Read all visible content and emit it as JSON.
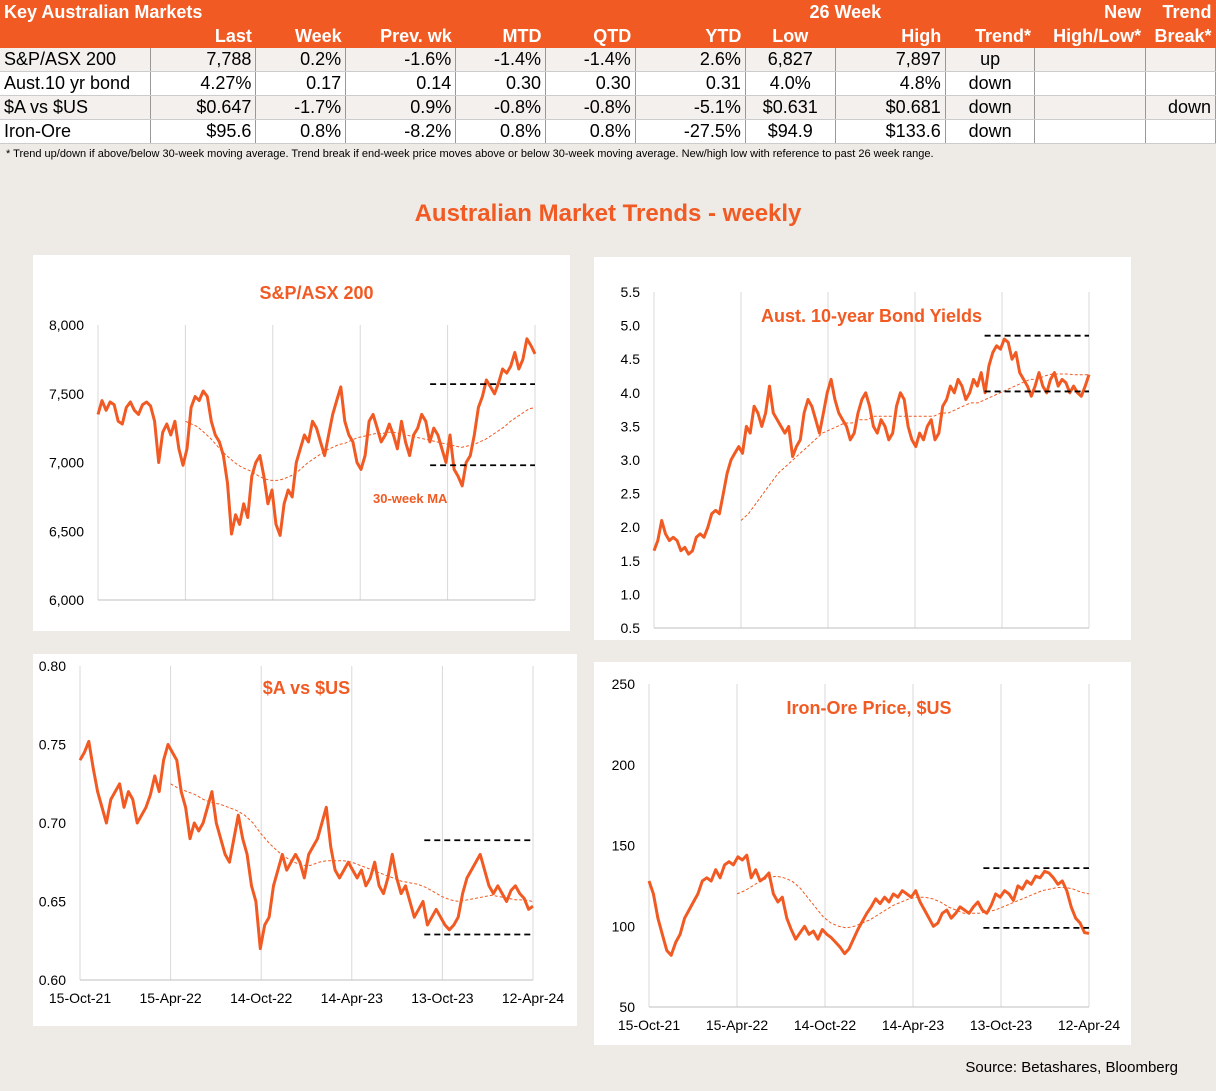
{
  "table": {
    "title": "Key Australian Markets",
    "group_header": "26 Week",
    "headers": [
      "Last",
      "Week",
      "Prev. wk",
      "MTD",
      "QTD",
      "YTD",
      "Low",
      "High",
      "Trend*",
      "New High/Low*",
      "Trend Break*"
    ],
    "header_top": {
      "new": "New",
      "trend": "Trend"
    },
    "header_bottom": {
      "new": "High/Low*",
      "trend": "Break*"
    },
    "rows": [
      {
        "name": "S&P/ASX 200",
        "last": "7,788",
        "week": "0.2%",
        "prev": "-1.6%",
        "mtd": "-1.4%",
        "qtd": "-1.4%",
        "ytd": "2.6%",
        "low": "6,827",
        "high": "7,897",
        "trend": "up",
        "newhl": "",
        "brk": ""
      },
      {
        "name": "Aust.10 yr bond",
        "last": "4.27%",
        "week": "0.17",
        "prev": "0.14",
        "mtd": "0.30",
        "qtd": "0.30",
        "ytd": "0.31",
        "low": "4.0%",
        "high": "4.8%",
        "trend": "down",
        "newhl": "",
        "brk": ""
      },
      {
        "name": "$A vs $US",
        "last": "$0.647",
        "week": "-1.7%",
        "prev": "0.9%",
        "mtd": "-0.8%",
        "qtd": "-0.8%",
        "ytd": "-5.1%",
        "low": "$0.631",
        "high": "$0.681",
        "trend": "down",
        "newhl": "",
        "brk": "down"
      },
      {
        "name": "Iron-Ore",
        "last": "$95.6",
        "week": "0.8%",
        "prev": "-8.2%",
        "mtd": "0.8%",
        "qtd": "0.8%",
        "ytd": "-27.5%",
        "low": "$94.9",
        "high": "$133.6",
        "trend": "down",
        "newhl": "",
        "brk": ""
      }
    ]
  },
  "footnote": "*  Trend up/down if above/below 30-week moving average. Trend break if end-week price moves above or below 30-week moving average.  New/high low with reference to past 26 week range.",
  "page_title": "Australian Market Trends - weekly",
  "source": "Source:  Betashares, Bloomberg",
  "colors": {
    "accent": "#f15a22",
    "ma": "#f15a22",
    "band": "#000000"
  },
  "chart_data": [
    {
      "type": "line",
      "title": "S&P/ASX 200",
      "ylim": [
        6000,
        8000
      ],
      "yticks": [
        6000,
        6500,
        7000,
        7500,
        8000
      ],
      "ytick_labels": [
        "6,000",
        "6,500",
        "7,000",
        "7,500",
        "8,000"
      ],
      "x_start": "15-Oct-21",
      "x_end": "12-Apr-24",
      "xticks": [
        "15-Oct-21",
        "15-Apr-22",
        "14-Oct-22",
        "14-Apr-23",
        "13-Oct-23",
        "12-Apr-24"
      ],
      "show_xticks": false,
      "annotation": "30-week MA",
      "series": [
        {
          "values": [
            7350,
            7450,
            7380,
            7440,
            7420,
            7300,
            7280,
            7400,
            7440,
            7380,
            7350,
            7420,
            7440,
            7410,
            7300,
            7000,
            7220,
            7280,
            7200,
            7300,
            7100,
            6980,
            7100,
            7400,
            7480,
            7450,
            7520,
            7480,
            7300,
            7200,
            7150,
            7050,
            6850,
            6480,
            6620,
            6550,
            6700,
            6600,
            6900,
            7000,
            7050,
            6900,
            6700,
            6800,
            6550,
            6470,
            6700,
            6800,
            6750,
            7000,
            7100,
            7200,
            7150,
            7300,
            7250,
            7150,
            7050,
            7200,
            7350,
            7450,
            7550,
            7300,
            7200,
            7150,
            7000,
            6950,
            7050,
            7300,
            7350,
            7250,
            7150,
            7200,
            7280,
            7200,
            7100,
            7300,
            7150,
            7050,
            7200,
            7250,
            7350,
            7300,
            7150,
            7250,
            7200,
            7100,
            7000,
            7200,
            6950,
            6900,
            6830,
            7000,
            7050,
            7200,
            7400,
            7480,
            7600,
            7550,
            7500,
            7580,
            7680,
            7650,
            7700,
            7800,
            7680,
            7750,
            7900,
            7850,
            7790
          ]
        },
        {
          "name": "30-week MA",
          "values": [
            7300,
            7280,
            7260,
            7220,
            7180,
            7130,
            7080,
            7040,
            7000,
            6970,
            6950,
            6930,
            6900,
            6880,
            6870,
            6870,
            6880,
            6900,
            6920,
            6960,
            7000,
            7030,
            7060,
            7090,
            7110,
            7130,
            7140,
            7160,
            7180,
            7190,
            7200,
            7210,
            7210,
            7220,
            7220,
            7210,
            7200,
            7190,
            7180,
            7170,
            7160,
            7150,
            7140,
            7130,
            7120,
            7110,
            7120,
            7130,
            7150,
            7170,
            7200,
            7230,
            7260,
            7300,
            7330,
            7360,
            7390,
            7400
          ]
        }
      ],
      "ma_start": "15-Apr-22",
      "bands": [
        7570,
        6980
      ]
    },
    {
      "type": "line",
      "title": "Aust. 10-year Bond Yields",
      "ylim": [
        0.5,
        5.5
      ],
      "yticks": [
        0.5,
        1.0,
        1.5,
        2.0,
        2.5,
        3.0,
        3.5,
        4.0,
        4.5,
        5.0,
        5.5
      ],
      "ytick_labels": [
        "0.5",
        "1.0",
        "1.5",
        "2.0",
        "2.5",
        "3.0",
        "3.5",
        "4.0",
        "4.5",
        "5.0",
        "5.5"
      ],
      "x_start": "15-Oct-21",
      "x_end": "12-Apr-24",
      "xticks": [
        "15-Oct-21",
        "15-Apr-22",
        "14-Oct-22",
        "14-Apr-23",
        "13-Oct-23",
        "12-Apr-24"
      ],
      "show_xticks": false,
      "series": [
        {
          "values": [
            1.65,
            1.8,
            2.1,
            1.9,
            1.8,
            1.85,
            1.8,
            1.65,
            1.7,
            1.6,
            1.65,
            1.85,
            1.9,
            1.85,
            2.0,
            2.2,
            2.25,
            2.2,
            2.5,
            2.8,
            3.0,
            3.1,
            3.2,
            3.1,
            3.5,
            3.4,
            3.8,
            3.7,
            3.5,
            3.7,
            4.1,
            3.7,
            3.6,
            3.5,
            3.4,
            3.5,
            3.05,
            3.2,
            3.3,
            3.7,
            3.9,
            3.8,
            3.6,
            3.4,
            3.7,
            4.0,
            4.2,
            3.9,
            3.7,
            3.6,
            3.5,
            3.3,
            3.4,
            3.7,
            3.9,
            4.0,
            3.8,
            3.5,
            3.4,
            3.6,
            3.5,
            3.3,
            3.4,
            3.8,
            4.0,
            3.9,
            3.5,
            3.3,
            3.2,
            3.4,
            3.3,
            3.5,
            3.6,
            3.3,
            3.4,
            3.8,
            3.9,
            4.1,
            4.0,
            4.2,
            4.1,
            3.9,
            4.0,
            4.2,
            4.1,
            4.3,
            4.0,
            4.4,
            4.6,
            4.7,
            4.65,
            4.8,
            4.75,
            4.5,
            4.6,
            4.3,
            4.2,
            4.1,
            3.95,
            4.1,
            4.3,
            4.1,
            4.0,
            4.2,
            4.3,
            4.1,
            4.2,
            4.15,
            4.0,
            4.1,
            4.0,
            3.95,
            4.1,
            4.27
          ]
        },
        {
          "name": "30-week MA",
          "values": [
            2.1,
            2.2,
            2.35,
            2.5,
            2.65,
            2.8,
            2.9,
            3.0,
            3.1,
            3.2,
            3.3,
            3.4,
            3.45,
            3.5,
            3.55,
            3.55,
            3.6,
            3.6,
            3.65,
            3.65,
            3.65,
            3.65,
            3.65,
            3.65,
            3.65,
            3.65,
            3.65,
            3.7,
            3.7,
            3.75,
            3.8,
            3.85,
            3.85,
            3.9,
            3.95,
            4.0,
            4.05,
            4.1,
            4.15,
            4.2,
            4.2,
            4.25,
            4.28,
            4.28,
            4.28,
            4.27,
            4.27,
            4.27
          ]
        },
        {
          "name": "hide",
          "values": []
        }
      ],
      "ma_start": "15-Apr-22",
      "bands": [
        4.85,
        4.02
      ]
    },
    {
      "type": "line",
      "title": "$A vs $US",
      "ylim": [
        0.6,
        0.8
      ],
      "yticks": [
        0.6,
        0.65,
        0.7,
        0.75,
        0.8
      ],
      "ytick_labels": [
        "0.60",
        "0.65",
        "0.70",
        "0.75",
        "0.80"
      ],
      "x_start": "15-Oct-21",
      "x_end": "12-Apr-24",
      "xticks": [
        "15-Oct-21",
        "15-Apr-22",
        "14-Oct-22",
        "14-Apr-23",
        "13-Oct-23",
        "12-Apr-24"
      ],
      "show_xticks": true,
      "series": [
        {
          "values": [
            0.74,
            0.745,
            0.752,
            0.735,
            0.72,
            0.71,
            0.7,
            0.715,
            0.72,
            0.725,
            0.71,
            0.72,
            0.715,
            0.7,
            0.705,
            0.71,
            0.718,
            0.73,
            0.72,
            0.74,
            0.75,
            0.745,
            0.74,
            0.72,
            0.71,
            0.69,
            0.7,
            0.695,
            0.7,
            0.71,
            0.72,
            0.7,
            0.69,
            0.68,
            0.675,
            0.69,
            0.705,
            0.69,
            0.68,
            0.66,
            0.65,
            0.62,
            0.635,
            0.64,
            0.66,
            0.67,
            0.68,
            0.67,
            0.675,
            0.68,
            0.675,
            0.665,
            0.68,
            0.685,
            0.69,
            0.7,
            0.71,
            0.685,
            0.67,
            0.665,
            0.67,
            0.675,
            0.67,
            0.665,
            0.67,
            0.66,
            0.665,
            0.675,
            0.66,
            0.655,
            0.665,
            0.68,
            0.665,
            0.655,
            0.66,
            0.65,
            0.64,
            0.645,
            0.65,
            0.635,
            0.64,
            0.645,
            0.64,
            0.635,
            0.632,
            0.635,
            0.64,
            0.655,
            0.665,
            0.67,
            0.675,
            0.68,
            0.67,
            0.66,
            0.655,
            0.66,
            0.655,
            0.65,
            0.657,
            0.66,
            0.655,
            0.652,
            0.645,
            0.647
          ]
        },
        {
          "name": "30-week MA",
          "values": [
            0.725,
            0.722,
            0.72,
            0.718,
            0.715,
            0.713,
            0.712,
            0.71,
            0.708,
            0.705,
            0.7,
            0.693,
            0.687,
            0.682,
            0.678,
            0.675,
            0.673,
            0.673,
            0.675,
            0.676,
            0.676,
            0.676,
            0.675,
            0.673,
            0.671,
            0.669,
            0.667,
            0.665,
            0.663,
            0.662,
            0.661,
            0.659,
            0.656,
            0.653,
            0.651,
            0.65,
            0.651,
            0.652,
            0.653,
            0.654,
            0.653,
            0.652,
            0.651,
            0.651,
            0.65
          ]
        }
      ],
      "ma_start": "15-Apr-22",
      "bands": [
        0.689,
        0.629
      ]
    },
    {
      "type": "line",
      "title": "Iron-Ore Price, $US",
      "ylim": [
        50,
        250
      ],
      "yticks": [
        50,
        100,
        150,
        200,
        250
      ],
      "ytick_labels": [
        "50",
        "100",
        "150",
        "200",
        "250"
      ],
      "x_start": "15-Oct-21",
      "x_end": "12-Apr-24",
      "xticks": [
        "15-Oct-21",
        "15-Apr-22",
        "14-Oct-22",
        "14-Apr-23",
        "13-Oct-23",
        "12-Apr-24"
      ],
      "show_xticks": true,
      "series": [
        {
          "values": [
            128,
            120,
            105,
            95,
            85,
            82,
            90,
            95,
            105,
            110,
            115,
            120,
            128,
            130,
            128,
            135,
            130,
            138,
            140,
            138,
            143,
            141,
            144,
            130,
            135,
            128,
            130,
            133,
            120,
            115,
            118,
            105,
            98,
            92,
            96,
            100,
            95,
            97,
            92,
            98,
            95,
            93,
            90,
            87,
            83,
            86,
            92,
            98,
            103,
            108,
            112,
            117,
            114,
            118,
            115,
            120,
            118,
            122,
            120,
            118,
            122,
            115,
            110,
            105,
            100,
            102,
            108,
            110,
            105,
            108,
            112,
            110,
            108,
            112,
            115,
            110,
            108,
            113,
            120,
            118,
            122,
            120,
            116,
            125,
            123,
            128,
            126,
            131,
            130,
            134,
            133,
            130,
            126,
            128,
            122,
            112,
            105,
            102,
            96,
            95.6
          ]
        },
        {
          "name": "30-week MA",
          "values": [
            120,
            122,
            125,
            128,
            130,
            131,
            130,
            128,
            124,
            118,
            112,
            106,
            102,
            100,
            99,
            100,
            102,
            104,
            107,
            110,
            113,
            115,
            117,
            118,
            118,
            117,
            115,
            112,
            110,
            108,
            108,
            108,
            109,
            110,
            112,
            114,
            116,
            118,
            120,
            122,
            123,
            124,
            124,
            123,
            121,
            120
          ]
        }
      ],
      "ma_start": "15-Apr-22",
      "bands": [
        136,
        99
      ]
    }
  ]
}
